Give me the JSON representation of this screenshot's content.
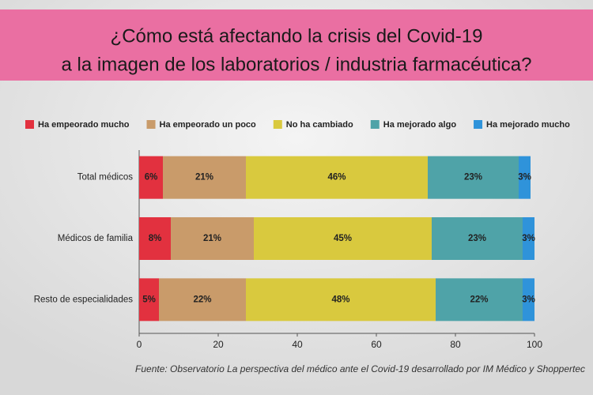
{
  "chart_data": {
    "type": "stacked-bar-horizontal",
    "title": [
      "¿Cómo está afectando la crisis del Covid-19",
      "a la imagen de los laboratorios / industria farmacéutica?"
    ],
    "categories": [
      "Total médicos",
      "Médicos de familia",
      "Resto de especialidades"
    ],
    "series": [
      {
        "name": "Ha empeorado mucho",
        "color": "#e2313f",
        "values": [
          6,
          8,
          5
        ],
        "value_labels": [
          "6%",
          "8%",
          "5%"
        ]
      },
      {
        "name": "Ha empeorado un poco",
        "color": "#c99b6a",
        "values": [
          21,
          21,
          22
        ],
        "value_labels": [
          "21%",
          "21%",
          "22%"
        ]
      },
      {
        "name": "No ha cambiado",
        "color": "#d9c93e",
        "values": [
          46,
          45,
          48
        ],
        "value_labels": [
          "46%",
          "45%",
          "48%"
        ]
      },
      {
        "name": "Ha mejorado algo",
        "color": "#4fa3a8",
        "values": [
          23,
          23,
          22
        ],
        "value_labels": [
          "23%",
          "23%",
          "22%"
        ]
      },
      {
        "name": "Ha mejorado mucho",
        "color": "#2f93da",
        "values": [
          3,
          3,
          3
        ],
        "value_labels": [
          "3%",
          "3%",
          "3%"
        ]
      }
    ],
    "xlim": [
      0,
      100
    ],
    "xticks": [
      0,
      20,
      40,
      60,
      80,
      100
    ],
    "grid": false,
    "legend": "top",
    "source": "Fuente: Observatorio La perspectiva del médico ante el Covid-19 desarrollado por IM Médico y Shoppertec"
  }
}
